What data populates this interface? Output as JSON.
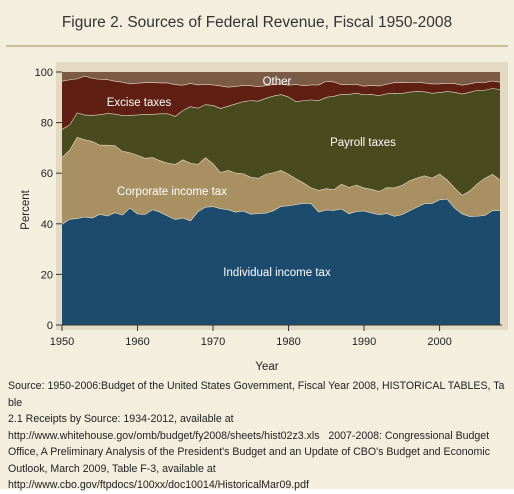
{
  "title": "Figure 2. Sources of Federal Revenue, Fiscal 1950-2008",
  "chart_data": {
    "type": "area",
    "stacked": true,
    "percent": true,
    "xlabel": "Year",
    "ylabel": "Percent",
    "xlim": [
      1950,
      2008
    ],
    "ylim": [
      0,
      100
    ],
    "xticks": [
      1950,
      1960,
      1970,
      1980,
      1990,
      2000
    ],
    "yticks": [
      0,
      20,
      40,
      60,
      80,
      100
    ],
    "tick_labels": {
      "x": [
        "1950",
        "1960",
        "1970",
        "1980",
        "1990",
        "2000"
      ],
      "y": [
        "0",
        "20",
        "40",
        "60",
        "80",
        "100"
      ]
    },
    "x": [
      1950,
      1951,
      1952,
      1953,
      1954,
      1955,
      1956,
      1957,
      1958,
      1959,
      1960,
      1961,
      1962,
      1963,
      1964,
      1965,
      1966,
      1967,
      1968,
      1969,
      1970,
      1971,
      1972,
      1973,
      1974,
      1975,
      1976,
      1977,
      1978,
      1979,
      1980,
      1981,
      1982,
      1983,
      1984,
      1985,
      1986,
      1987,
      1988,
      1989,
      1990,
      1991,
      1992,
      1993,
      1994,
      1995,
      1996,
      1997,
      1998,
      1999,
      2000,
      2001,
      2002,
      2003,
      2004,
      2005,
      2006,
      2007,
      2008
    ],
    "series": [
      {
        "name": "Individual income tax",
        "color": "#1d4b6e",
        "label_color": "#ffffff",
        "values": [
          39.9,
          41.9,
          42.2,
          42.8,
          42.4,
          43.9,
          43.2,
          44.5,
          43.6,
          46.4,
          44.0,
          43.8,
          45.7,
          44.7,
          43.2,
          41.8,
          42.4,
          41.3,
          44.9,
          46.7,
          46.9,
          46.1,
          45.7,
          44.7,
          45.2,
          43.9,
          44.2,
          44.3,
          45.3,
          47.0,
          47.2,
          47.7,
          48.2,
          48.1,
          44.8,
          45.6,
          45.4,
          46.0,
          44.1,
          45.0,
          45.2,
          44.4,
          43.7,
          44.2,
          43.1,
          43.7,
          45.2,
          46.7,
          48.1,
          48.1,
          49.6,
          49.9,
          46.3,
          44.0,
          43.0,
          43.1,
          43.4,
          45.3,
          45.4
        ]
      },
      {
        "name": "Corporate income tax",
        "color": "#a99062",
        "label_color": "#ffffff",
        "values": [
          26.5,
          27.3,
          32.1,
          30.5,
          30.3,
          27.3,
          28.0,
          26.5,
          25.2,
          21.8,
          23.2,
          22.2,
          20.6,
          20.3,
          20.9,
          21.8,
          23.0,
          22.8,
          18.7,
          19.6,
          17.0,
          14.3,
          15.5,
          15.5,
          14.7,
          14.6,
          13.9,
          15.4,
          15.0,
          14.2,
          12.5,
          10.2,
          8.0,
          6.2,
          8.5,
          8.4,
          8.2,
          9.8,
          10.4,
          10.4,
          9.1,
          9.3,
          9.2,
          10.2,
          11.2,
          11.6,
          11.8,
          11.5,
          11.0,
          10.1,
          10.2,
          7.6,
          8.0,
          7.4,
          10.1,
          12.9,
          14.7,
          14.4,
          12.1
        ]
      },
      {
        "name": "Payroll taxes",
        "color": "#4a4a1f",
        "label_color": "#ffffff",
        "values": [
          11.0,
          10.0,
          9.7,
          9.8,
          10.3,
          12.0,
          12.5,
          12.5,
          14.1,
          14.8,
          15.9,
          17.4,
          17.1,
          18.6,
          19.5,
          19.0,
          19.5,
          22.3,
          22.2,
          20.9,
          23.0,
          25.3,
          25.4,
          27.3,
          28.5,
          30.3,
          30.5,
          30.0,
          30.3,
          30.0,
          30.5,
          30.5,
          32.6,
          34.8,
          35.5,
          36.1,
          36.9,
          35.5,
          36.8,
          36.3,
          36.8,
          37.5,
          37.9,
          37.1,
          37.4,
          36.3,
          35.2,
          34.2,
          33.2,
          33.5,
          32.2,
          34.9,
          37.8,
          40.0,
          39.0,
          36.9,
          34.8,
          33.9,
          35.7
        ]
      },
      {
        "name": "Excise taxes",
        "color": "#5f1f12",
        "label_color": "#ffffff",
        "values": [
          19.1,
          17.8,
          13.4,
          15.4,
          14.6,
          14.0,
          13.4,
          13.0,
          13.2,
          12.4,
          12.6,
          12.5,
          12.6,
          12.2,
          12.2,
          12.5,
          10.0,
          9.2,
          9.2,
          8.1,
          8.1,
          8.9,
          7.5,
          6.9,
          6.4,
          5.9,
          5.7,
          5.0,
          4.6,
          4.2,
          4.7,
          6.8,
          5.9,
          5.9,
          6.2,
          6.4,
          5.7,
          3.8,
          3.9,
          3.5,
          3.4,
          3.6,
          3.8,
          3.8,
          4.2,
          4.3,
          3.8,
          3.6,
          3.5,
          3.7,
          3.4,
          3.3,
          3.4,
          3.5,
          3.3,
          3.2,
          3.1,
          3.0,
          2.9
        ]
      },
      {
        "name": "Other",
        "color": "#7b5a46",
        "label_color": "#ffffff",
        "values": [
          3.5,
          3.0,
          2.6,
          1.5,
          2.4,
          2.8,
          2.9,
          3.5,
          3.9,
          4.6,
          4.3,
          4.1,
          4.0,
          4.2,
          4.2,
          4.9,
          5.1,
          4.4,
          5.0,
          4.7,
          5.0,
          5.4,
          5.9,
          5.6,
          5.2,
          5.3,
          5.7,
          5.3,
          4.8,
          4.6,
          5.1,
          4.8,
          5.3,
          5.0,
          5.0,
          3.5,
          3.8,
          4.9,
          4.8,
          4.8,
          5.5,
          5.2,
          5.4,
          4.7,
          4.1,
          4.1,
          4.0,
          4.0,
          4.2,
          4.6,
          4.6,
          4.3,
          4.5,
          5.1,
          4.6,
          3.9,
          4.0,
          3.4,
          3.9
        ]
      }
    ]
  },
  "source": {
    "lines": [
      "Source: 1950-2006:Budget of the United States Government, Fiscal Year 2008, HISTORICAL TABLES, Table",
      "2.1 Receipts by Source: 1934-2012, available at",
      "http://www.whitehouse.gov/omb/budget/fy2008/sheets/hist02z3.xls   2007-2008: Congressional Budget",
      "Office, A Preliminary Analysis of the President's Budget and an Update of CBO's Budget and Economic",
      "Outlook, March 2009, Table F-3, available at",
      "http://www.cbo.gov/ftpdocs/100xx/doc10014/HistoricalMar09.pdf"
    ]
  }
}
